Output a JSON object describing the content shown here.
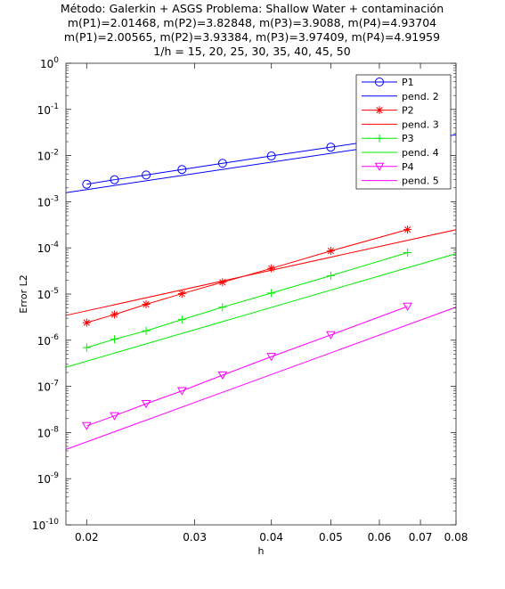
{
  "chart_data": {
    "type": "line",
    "title_lines": [
      "Método: Galerkin + ASGS       Problema: Shallow Water + contaminación",
      "m(P1)=2.01468,    m(P2)=3.82848,    m(P3)=3.9088,    m(P4)=4.93704",
      "m(P1)=2.00565,    m(P2)=3.93384,    m(P3)=3.97409,    m(P4)=4.91959",
      "1/h = 15, 20, 25, 30, 35, 40, 45, 50"
    ],
    "xlabel": "h",
    "ylabel": "Error L2",
    "xscale": "log",
    "yscale": "log",
    "xlim": [
      0.0185,
      0.08
    ],
    "ylim": [
      1e-10,
      1
    ],
    "x_ticks": [
      0.02,
      0.03,
      0.04,
      0.05,
      0.06,
      0.07,
      0.08
    ],
    "x_tick_labels": [
      "0.02",
      "0.03",
      "0.04",
      "0.05",
      "0.06",
      "0.07",
      "0.08"
    ],
    "y_ticks": [
      {
        "value": 1,
        "base": "10",
        "exp": "0"
      },
      {
        "value": 0.1,
        "base": "10",
        "exp": "-1"
      },
      {
        "value": 0.01,
        "base": "10",
        "exp": "-2"
      },
      {
        "value": 0.001,
        "base": "10",
        "exp": "-3"
      },
      {
        "value": 0.0001,
        "base": "10",
        "exp": "-4"
      },
      {
        "value": 1e-05,
        "base": "10",
        "exp": "-5"
      },
      {
        "value": 1e-06,
        "base": "10",
        "exp": "-6"
      },
      {
        "value": 1e-07,
        "base": "10",
        "exp": "-7"
      },
      {
        "value": 1e-08,
        "base": "10",
        "exp": "-8"
      },
      {
        "value": 1e-09,
        "base": "10",
        "exp": "-9"
      },
      {
        "value": 1e-10,
        "base": "10",
        "exp": "-10"
      }
    ],
    "legend_position": "top-right",
    "grid": false,
    "series": [
      {
        "name": "P1",
        "color": "#0000ff",
        "marker": "circle",
        "x": [
          0.02,
          0.0222,
          0.025,
          0.0286,
          0.0333,
          0.04,
          0.05,
          0.0667
        ],
        "y": [
          0.0024,
          0.003,
          0.0038,
          0.005,
          0.0068,
          0.0098,
          0.0152,
          0.0268
        ]
      },
      {
        "name": "pend. 2",
        "color": "#0000ff",
        "marker": "none",
        "x": [
          0.0185,
          0.08
        ],
        "y": [
          0.00157,
          0.0283
        ]
      },
      {
        "name": "P2",
        "color": "#ff0000",
        "marker": "star",
        "x": [
          0.02,
          0.0222,
          0.025,
          0.0286,
          0.0333,
          0.04,
          0.05,
          0.0667
        ],
        "y": [
          2.4e-06,
          3.6e-06,
          6e-06,
          1.02e-05,
          1.8e-05,
          3.6e-05,
          8.6e-05,
          0.00025
        ]
      },
      {
        "name": "pend. 3",
        "color": "#ff0000",
        "marker": "none",
        "x": [
          0.0185,
          0.08
        ],
        "y": [
          3.45e-06,
          0.000248
        ]
      },
      {
        "name": "P3",
        "color": "#00ee00",
        "marker": "plus",
        "x": [
          0.02,
          0.0222,
          0.025,
          0.0286,
          0.0333,
          0.04,
          0.05,
          0.0667
        ],
        "y": [
          6.9e-07,
          1.05e-06,
          1.6e-06,
          2.8e-06,
          5.2e-06,
          1.05e-05,
          2.5e-05,
          7.9e-05
        ]
      },
      {
        "name": "pend. 4",
        "color": "#00ee00",
        "marker": "none",
        "x": [
          0.0185,
          0.08
        ],
        "y": [
          2.6e-07,
          7.5e-05
        ]
      },
      {
        "name": "P4",
        "color": "#ff00ff",
        "marker": "triangle-down",
        "x": [
          0.02,
          0.0222,
          0.025,
          0.0286,
          0.0333,
          0.04,
          0.05,
          0.0667
        ],
        "y": [
          1.4e-08,
          2.3e-08,
          4.2e-08,
          8e-08,
          1.75e-07,
          4.4e-07,
          1.3e-06,
          5.4e-06
        ]
      },
      {
        "name": "pend. 5",
        "color": "#ff00ff",
        "marker": "none",
        "x": [
          0.0185,
          0.08
        ],
        "y": [
          4.3e-09,
          5.2e-06
        ]
      }
    ]
  }
}
